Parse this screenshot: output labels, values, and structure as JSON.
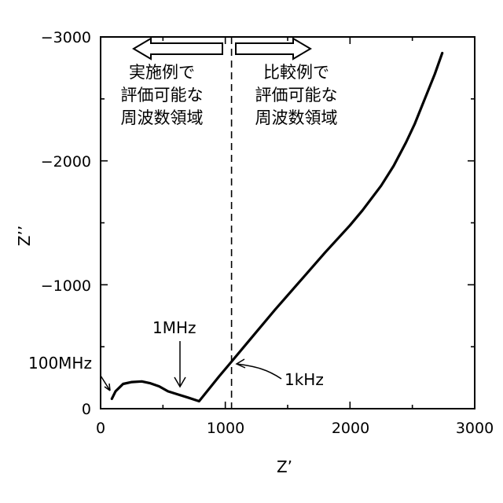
{
  "chart_data": {
    "type": "line",
    "xlabel": "Z’",
    "ylabel": "Z’’",
    "xlim": [
      0,
      3000
    ],
    "ylim": [
      0,
      -3000
    ],
    "y_inverted": true,
    "x_ticks": [
      "0",
      "1000",
      "2000",
      "3000"
    ],
    "y_ticks": [
      "0",
      "−1000",
      "−2000",
      "−3000"
    ],
    "grid": false,
    "series": [
      {
        "x": [
          90,
          120,
          180,
          250,
          330,
          400,
          470,
          540,
          620,
          700,
          790,
          870,
          950,
          1050,
          1200,
          1400,
          1600,
          1800,
          2000,
          2100,
          2250,
          2350,
          2450,
          2520,
          2600,
          2680,
          2740
        ],
        "y": [
          -80,
          -140,
          -200,
          -215,
          -220,
          -205,
          -180,
          -140,
          -115,
          -90,
          -60,
          -160,
          -260,
          -380,
          -560,
          -800,
          -1030,
          -1260,
          -1480,
          -1600,
          -1800,
          -1960,
          -2150,
          -2300,
          -2500,
          -2700,
          -2870
        ]
      }
    ],
    "divider_x": 1050,
    "annotations": [
      {
        "text": "100MHz",
        "x": 80,
        "y": -100
      },
      {
        "text": "1MHz",
        "x": 640,
        "y": -150
      },
      {
        "text": "1kHz",
        "x": 1080,
        "y": -380
      }
    ],
    "regions": {
      "left": [
        "実施例で",
        "評価可能な",
        "周波数領域"
      ],
      "right": [
        "比較例で",
        "評価可能な",
        "周波数領域"
      ]
    }
  }
}
